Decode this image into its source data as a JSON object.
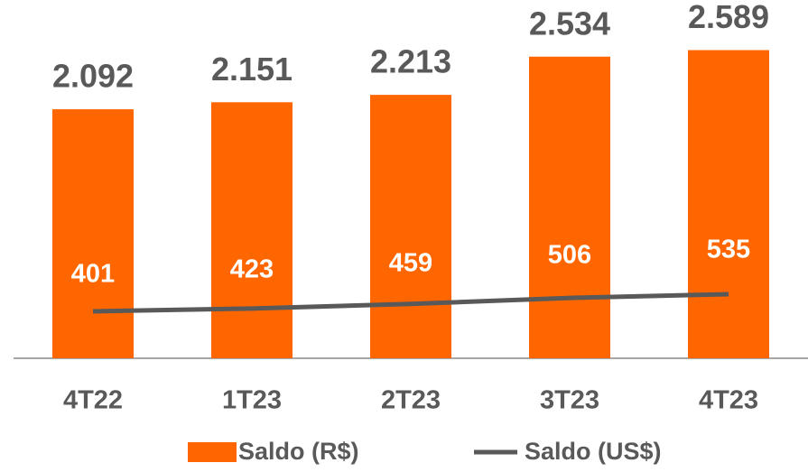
{
  "chart_data": {
    "type": "bar",
    "categories": [
      "4T22",
      "1T23",
      "2T23",
      "3T23",
      "4T23"
    ],
    "series": [
      {
        "name": "Saldo (R$)",
        "type": "bar",
        "color": "#ff6600",
        "values": [
          2092,
          2151,
          2213,
          2534,
          2589
        ],
        "value_labels": [
          "2.092",
          "2.151",
          "2.213",
          "2.534",
          "2.589"
        ]
      },
      {
        "name": "Saldo (US$)",
        "type": "line",
        "axis": "y2",
        "color": "#595959",
        "values": [
          401,
          423,
          459,
          506,
          535
        ]
      }
    ],
    "ylim": [
      0,
      3010
    ],
    "y2lim": [
      34,
      2834
    ],
    "legend": "bottom"
  }
}
